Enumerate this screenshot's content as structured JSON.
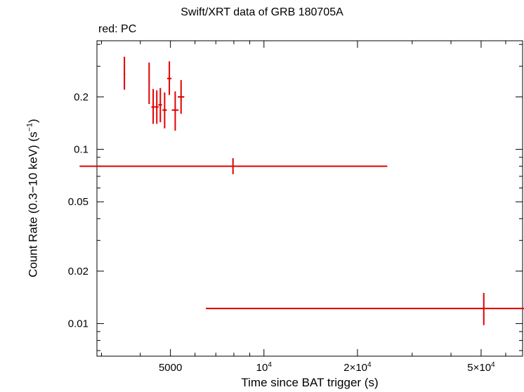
{
  "chart_data": {
    "type": "scatter",
    "title": "Swift/XRT data of GRB 180705A",
    "subtitle": "red: PC",
    "xlabel": "Time since BAT trigger (s)",
    "ylabel": {
      "prefix": "Count Rate (0.3−10 keV) (s",
      "exp": "−1",
      "suffix": ")"
    },
    "xscale": "log",
    "yscale": "log",
    "xlim": [
      2900,
      68000
    ],
    "ylim": [
      0.0065,
      0.42
    ],
    "grid": false,
    "series_color": "#e00000",
    "x_ticks": [
      {
        "value": 5000,
        "base": "5000",
        "exp": ""
      },
      {
        "value": 10000,
        "base": "10",
        "exp": "4"
      },
      {
        "value": 20000,
        "base": "2×10",
        "exp": "4"
      },
      {
        "value": 50000,
        "base": "5×10",
        "exp": "4"
      }
    ],
    "y_ticks": [
      {
        "value": 0.01,
        "label": "0.01"
      },
      {
        "value": 0.02,
        "label": "0.02"
      },
      {
        "value": 0.05,
        "label": "0.05"
      },
      {
        "value": 0.1,
        "label": "0.1"
      },
      {
        "value": 0.2,
        "label": "0.2"
      }
    ],
    "series": [
      {
        "points": [
          {
            "x": 3555,
            "xerr": [
              20,
              20
            ],
            "y": 0.27,
            "yerr": [
              0.22,
              0.34
            ]
          },
          {
            "x": 4270,
            "xerr": [
              20,
              20
            ],
            "y": 0.245,
            "yerr": [
              0.182,
              0.315
            ]
          },
          {
            "x": 4400,
            "xerr": [
              60,
              60
            ],
            "y": 0.175,
            "yerr": [
              0.14,
              0.222
            ]
          },
          {
            "x": 4520,
            "xerr": [
              60,
              60
            ],
            "y": 0.175,
            "yerr": [
              0.14,
              0.218
            ]
          },
          {
            "x": 4640,
            "xerr": [
              70,
              60
            ],
            "y": 0.18,
            "yerr": [
              0.143,
              0.225
            ]
          },
          {
            "x": 4790,
            "xerr": [
              80,
              80
            ],
            "y": 0.168,
            "yerr": [
              0.132,
              0.212
            ]
          },
          {
            "x": 4960,
            "xerr": [
              80,
              80
            ],
            "y": 0.255,
            "yerr": [
              0.205,
              0.32
            ]
          },
          {
            "x": 5180,
            "xerr": [
              130,
              130
            ],
            "y": 0.168,
            "yerr": [
              0.128,
              0.215
            ]
          },
          {
            "x": 5410,
            "xerr": [
              130,
              130
            ],
            "y": 0.2,
            "yerr": [
              0.16,
              0.25
            ]
          },
          {
            "x": 7950,
            "xerr": [
              5400,
              17000
            ],
            "y": 0.08,
            "yerr": [
              0.072,
              0.089
            ]
          },
          {
            "x": 51000,
            "xerr": [
              44500,
              58000
            ],
            "y": 0.0122,
            "yerr": [
              0.0098,
              0.015
            ]
          }
        ]
      }
    ]
  }
}
